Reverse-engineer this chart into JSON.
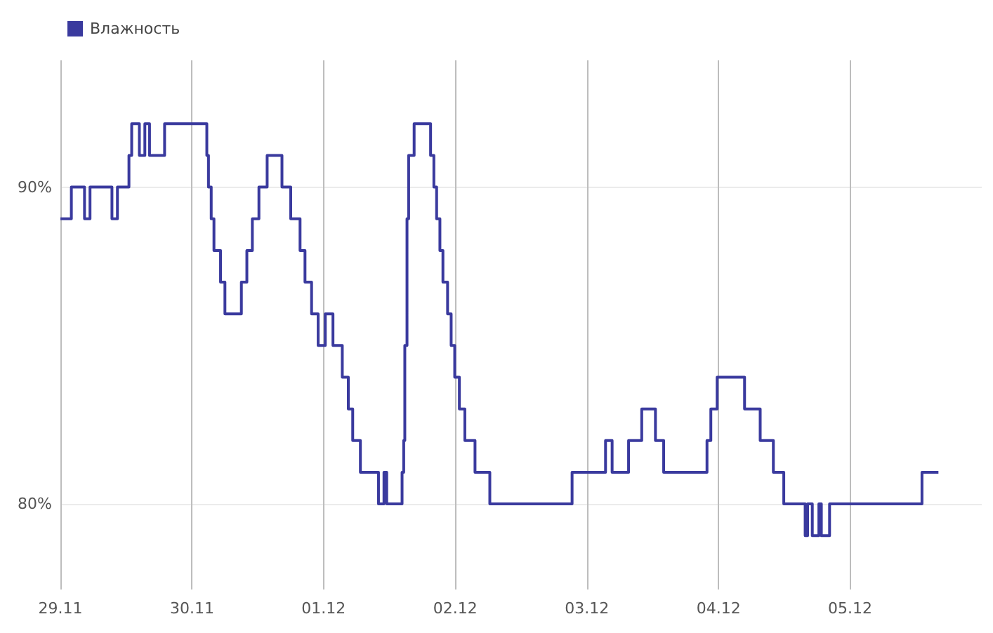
{
  "chart_data": {
    "type": "step",
    "legend": "top left",
    "grid": true,
    "marker": "none",
    "line_style": "solid",
    "xlim": [
      "--11-29",
      "--12-06"
    ],
    "xticks": [
      {
        "value": "--11-29",
        "label": "29.11"
      },
      {
        "value": "--11-30",
        "label": "30.11"
      },
      {
        "value": "--12-01",
        "label": "01.12"
      },
      {
        "value": "--12-02",
        "label": "02.12"
      },
      {
        "value": "--12-03",
        "label": "03.12"
      },
      {
        "value": "--12-04",
        "label": "04.12"
      },
      {
        "value": "--12-05",
        "label": "05.12"
      }
    ],
    "ylim": [
      77.3,
      94
    ],
    "yticks": [
      {
        "value": 80,
        "label": "80%"
      },
      {
        "value": 90,
        "label": "90%"
      }
    ],
    "series": [
      {
        "name": "Влажность",
        "color": "#3a3a9e",
        "x": [
          "--11-29T00:00",
          "--11-29T02:00",
          "--11-29T04:24",
          "--11-29T05:24",
          "--11-29T09:24",
          "--11-29T10:24",
          "--11-29T12:30",
          "--11-29T13:00",
          "--11-29T14:24",
          "--11-29T15:24",
          "--11-29T16:15",
          "--11-29T19:00",
          "--11-30T02:00",
          "--11-30T02:42",
          "--11-30T03:00",
          "--11-30T03:30",
          "--11-30T04:00",
          "--11-30T05:12",
          "--11-30T06:00",
          "--11-30T09:00",
          "--11-30T10:00",
          "--11-30T11:00",
          "--11-30T12:12",
          "--11-30T13:42",
          "--11-30T16:24",
          "--11-30T18:00",
          "--11-30T19:42",
          "--11-30T20:36",
          "--11-30T21:48",
          "--11-30T23:00",
          "--12-01T00:18",
          "--12-01T01:42",
          "--12-01T03:24",
          "--12-01T04:30",
          "--12-01T05:18",
          "--12-01T06:42",
          "--12-01T10:00",
          "--12-01T11:00",
          "--12-01T11:30",
          "--12-01T14:18",
          "--12-01T14:36",
          "--12-01T14:48",
          "--12-01T15:12",
          "--12-01T15:30",
          "--12-01T16:30",
          "--12-01T19:30",
          "--12-01T20:06",
          "--12-01T20:36",
          "--12-01T21:12",
          "--12-01T21:45",
          "--12-01T22:36",
          "--12-01T23:15",
          "--12-01T23:54",
          "--12-02T00:45",
          "--12-02T01:45",
          "--12-02T03:36",
          "--12-02T06:18",
          "--12-02T21:18",
          "--12-03T03:24",
          "--12-03T04:36",
          "--12-03T07:36",
          "--12-03T10:00",
          "--12-03T12:30",
          "--12-03T14:00",
          "--12-03T21:54",
          "--12-03T22:36",
          "--12-03T23:45",
          "--12-04T04:45",
          "--12-04T07:36",
          "--12-04T10:00",
          "--12-04T11:54",
          "--12-04T15:48",
          "--12-04T16:15",
          "--12-04T17:06",
          "--12-04T18:18",
          "--12-04T18:45",
          "--12-04T20:15",
          "--12-05T13:06",
          "--12-05T16:06"
        ],
        "values": [
          89,
          90,
          89,
          90,
          89,
          90,
          91,
          92,
          91,
          92,
          91,
          92,
          92,
          91,
          90,
          89,
          88,
          87,
          86,
          87,
          88,
          89,
          90,
          91,
          90,
          89,
          88,
          87,
          86,
          85,
          86,
          85,
          84,
          83,
          82,
          81,
          80,
          81,
          80,
          81,
          82,
          85,
          89,
          91,
          92,
          91,
          90,
          89,
          88,
          87,
          86,
          85,
          84,
          83,
          82,
          81,
          80,
          81,
          82,
          81,
          82,
          83,
          82,
          81,
          82,
          83,
          84,
          83,
          82,
          81,
          80,
          79,
          80,
          79,
          80,
          79,
          80,
          81,
          81
        ]
      }
    ]
  }
}
